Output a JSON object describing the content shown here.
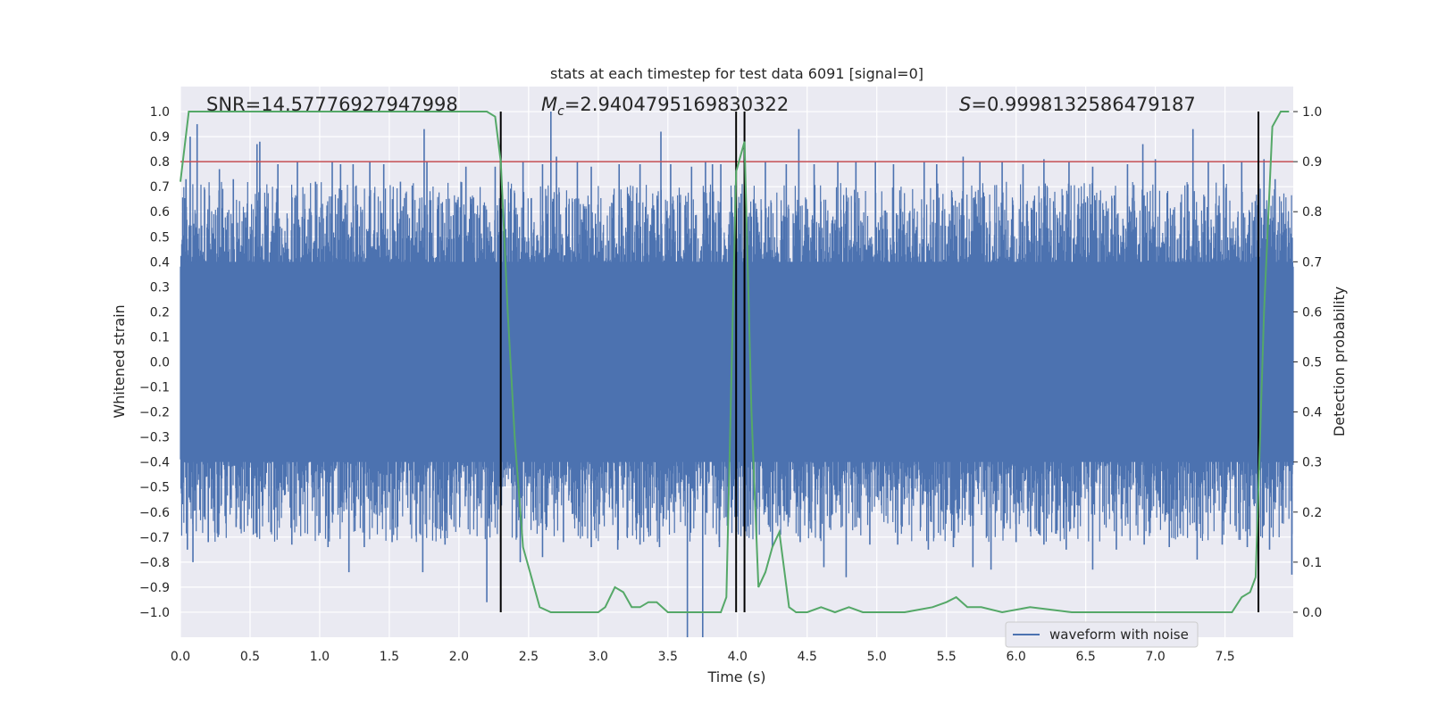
{
  "chart_data": {
    "type": "line",
    "title": "stats at each timestep for test data 6091 [signal=0]",
    "xlabel": "Time (s)",
    "ylabel_left": "Whitened strain",
    "ylabel_right": "Detection probability",
    "xlim": [
      0.0,
      7.99
    ],
    "ylim_left": [
      -1.1,
      1.1
    ],
    "ylim_right": [
      -0.05,
      1.05
    ],
    "xticks": [
      "0.0",
      "0.5",
      "1.0",
      "1.5",
      "2.0",
      "2.5",
      "3.0",
      "3.5",
      "4.0",
      "4.5",
      "5.0",
      "5.5",
      "6.0",
      "6.5",
      "7.0",
      "7.5"
    ],
    "yticks_left": [
      "-1.0",
      "-0.9",
      "-0.8",
      "-0.7",
      "-0.6",
      "-0.5",
      "-0.4",
      "-0.3",
      "-0.2",
      "-0.1",
      "0.0",
      "0.1",
      "0.2",
      "0.3",
      "0.4",
      "0.5",
      "0.6",
      "0.7",
      "0.8",
      "0.9",
      "1.0"
    ],
    "yticks_right": [
      "0.0",
      "0.1",
      "0.2",
      "0.3",
      "0.4",
      "0.5",
      "0.6",
      "0.7",
      "0.8",
      "0.9",
      "1.0"
    ],
    "grid": true,
    "legend_position": "lower-right",
    "annotations": {
      "snr": "SNR=14.57776927947998",
      "mc_symbol": "M",
      "mc_sub": "c",
      "mc_value": "=2.9404795169830322",
      "s_symbol": "S",
      "s_value": "=0.9998132586479187"
    },
    "threshold": 0.9,
    "vertical_lines_x": [
      2.3,
      3.99,
      4.05,
      7.74
    ],
    "series": [
      {
        "name": "waveform with noise",
        "color": "#4c72b0",
        "description_values": "noisy whitened strain, approx. within -1.0 to 1.0",
        "peaks_x": [
          0.04,
          0.07,
          0.12,
          0.28,
          0.38,
          0.55,
          0.57,
          0.7,
          0.84,
          0.97,
          1.09,
          1.15,
          1.24,
          1.36,
          1.46,
          1.58,
          1.75,
          1.77,
          2.05,
          2.26,
          2.46,
          2.6,
          2.66,
          2.7,
          2.85,
          2.95,
          3.15,
          3.3,
          3.45,
          3.52,
          3.67,
          3.77,
          3.82,
          3.88,
          4.05,
          4.2,
          4.35,
          4.44,
          4.55,
          4.72,
          4.85,
          4.99,
          5.12,
          5.34,
          5.43,
          5.62,
          5.74,
          5.9,
          6.05,
          6.2,
          6.38,
          6.55,
          6.8,
          6.91,
          7.0,
          7.27,
          7.38,
          7.49,
          7.62,
          7.78,
          7.86
        ],
        "peaks_y": [
          0.73,
          0.9,
          0.95,
          0.77,
          0.73,
          0.87,
          0.88,
          0.79,
          0.8,
          0.72,
          0.8,
          0.79,
          0.79,
          0.8,
          0.79,
          0.72,
          0.93,
          0.8,
          0.78,
          0.78,
          0.8,
          0.79,
          1.0,
          0.82,
          0.8,
          0.78,
          0.79,
          0.79,
          0.92,
          0.79,
          0.78,
          0.8,
          0.79,
          0.79,
          0.88,
          0.8,
          0.79,
          0.93,
          0.79,
          0.8,
          0.8,
          0.8,
          0.79,
          0.8,
          0.79,
          0.82,
          0.8,
          0.8,
          0.79,
          0.81,
          0.8,
          0.78,
          0.79,
          0.87,
          0.81,
          0.93,
          0.8,
          0.79,
          0.8,
          0.81,
          0.73
        ],
        "troughs_x": [
          0.05,
          0.09,
          0.2,
          0.27,
          0.4,
          0.55,
          0.65,
          0.8,
          1.06,
          1.21,
          1.32,
          1.52,
          1.74,
          1.9,
          2.2,
          2.3,
          2.44,
          2.6,
          2.75,
          2.95,
          3.14,
          3.3,
          3.44,
          3.64,
          3.75,
          3.87,
          4.05,
          4.25,
          4.45,
          4.62,
          4.78,
          4.95,
          5.15,
          5.37,
          5.55,
          5.69,
          5.82,
          6.0,
          6.2,
          6.36,
          6.55,
          6.72,
          6.92,
          7.1,
          7.3,
          7.48,
          7.66,
          7.82,
          7.98
        ],
        "troughs_y": [
          -0.75,
          -0.8,
          -0.72,
          -0.7,
          -0.66,
          -0.7,
          -0.68,
          -0.73,
          -0.74,
          -0.84,
          -0.74,
          -0.72,
          -0.84,
          -0.73,
          -0.96,
          -0.72,
          -0.8,
          -0.78,
          -0.72,
          -0.74,
          -0.75,
          -0.73,
          -0.74,
          -1.1,
          -1.1,
          -0.74,
          -0.74,
          -0.74,
          -0.72,
          -0.82,
          -0.86,
          -0.73,
          -0.73,
          -0.75,
          -0.74,
          -0.82,
          -0.83,
          -0.72,
          -0.73,
          -0.75,
          -0.83,
          -0.75,
          -0.73,
          -0.74,
          -0.79,
          -0.73,
          -0.74,
          -0.75,
          -0.85
        ]
      },
      {
        "name": "detection probability",
        "color": "#55a868",
        "axis": "right",
        "x": [
          0.0,
          0.06,
          0.12,
          0.5,
          1.0,
          1.5,
          2.0,
          2.2,
          2.26,
          2.3,
          2.35,
          2.4,
          2.46,
          2.52,
          2.58,
          2.66,
          2.8,
          3.0,
          3.05,
          3.12,
          3.18,
          3.24,
          3.3,
          3.36,
          3.42,
          3.5,
          3.65,
          3.8,
          3.88,
          3.92,
          3.99,
          4.05,
          4.1,
          4.15,
          4.2,
          4.25,
          4.3,
          4.37,
          4.42,
          4.5,
          4.6,
          4.7,
          4.8,
          4.9,
          5.0,
          5.2,
          5.4,
          5.5,
          5.57,
          5.65,
          5.75,
          5.9,
          6.1,
          6.4,
          6.8,
          7.2,
          7.55,
          7.62,
          7.68,
          7.72,
          7.78,
          7.84,
          7.9,
          7.96
        ],
        "y": [
          0.86,
          1.0,
          1.0,
          1.0,
          1.0,
          1.0,
          1.0,
          1.0,
          0.99,
          0.9,
          0.6,
          0.35,
          0.13,
          0.07,
          0.01,
          0.0,
          0.0,
          0.0,
          0.01,
          0.05,
          0.04,
          0.01,
          0.01,
          0.02,
          0.02,
          0.0,
          0.0,
          0.0,
          0.0,
          0.03,
          0.88,
          0.94,
          0.4,
          0.05,
          0.08,
          0.13,
          0.16,
          0.01,
          0.0,
          0.0,
          0.01,
          0.0,
          0.01,
          0.0,
          0.0,
          0.0,
          0.01,
          0.02,
          0.03,
          0.01,
          0.01,
          0.0,
          0.01,
          0.0,
          0.0,
          0.0,
          0.0,
          0.03,
          0.04,
          0.07,
          0.6,
          0.97,
          1.0,
          1.0
        ]
      }
    ]
  }
}
